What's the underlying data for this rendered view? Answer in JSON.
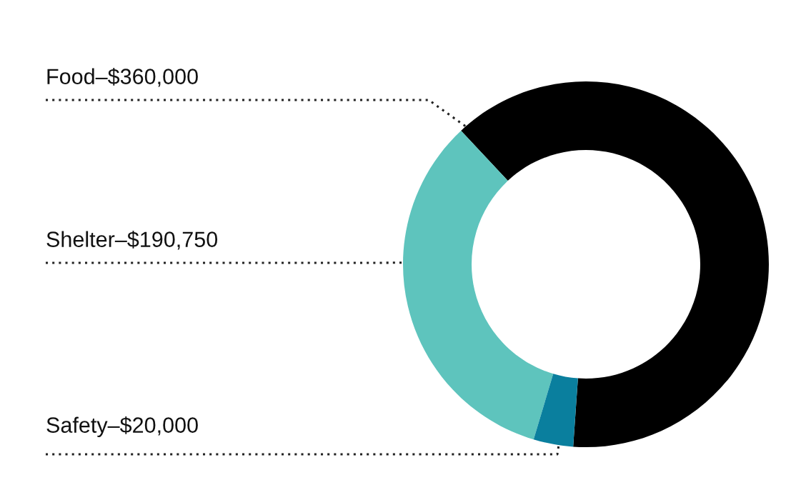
{
  "chart_data": {
    "type": "donut",
    "categories": [
      "Food",
      "Shelter",
      "Safety"
    ],
    "values": [
      360000,
      190750,
      20000
    ],
    "value_labels": [
      "$360,000",
      "$190,750",
      "$20,000"
    ],
    "colors": [
      "#000000",
      "#5ec4bd",
      "#0a7f9e"
    ]
  }
}
